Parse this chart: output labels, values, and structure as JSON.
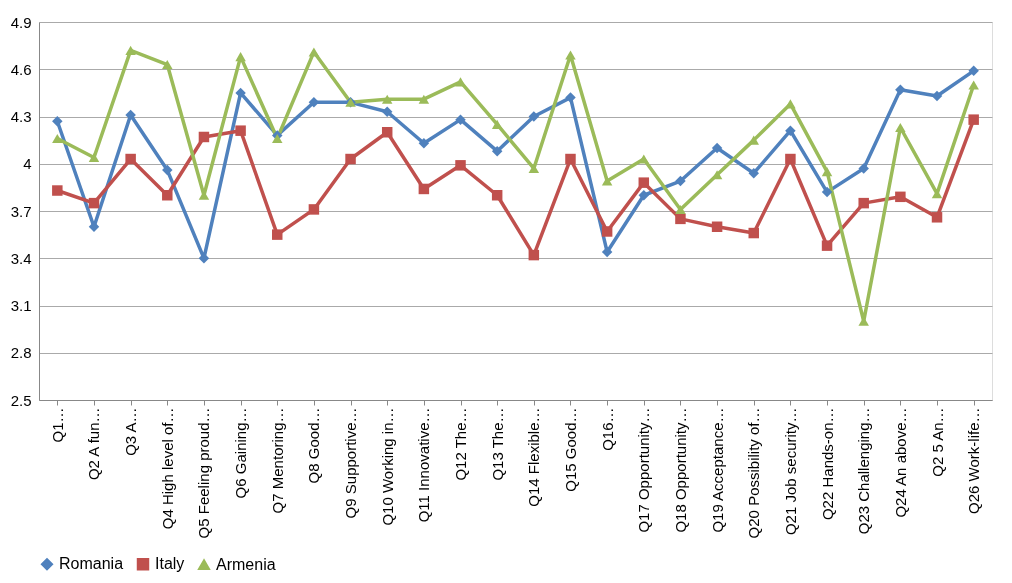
{
  "chart_data": {
    "type": "line",
    "categories": [
      "Q1…",
      "Q2 A fun…",
      "Q3 A…",
      "Q4 High level of…",
      "Q5 Feeling proud…",
      "Q6 Gaining…",
      "Q7 Mentoring…",
      "Q8 Good…",
      "Q9 Supportive…",
      "Q10 Working in…",
      "Q11 Innovative…",
      "Q12 The…",
      "Q13 The…",
      "Q14 Flexible…",
      "Q15 Good…",
      "Q16…",
      "Q17 Opportunity…",
      "Q18 Opportunity…",
      "Q19 Acceptance…",
      "Q20 Possibility of…",
      "Q21 Job security…",
      "Q22 Hands-on…",
      "Q23 Challenging…",
      "Q24 An above…",
      "Q2 5 An…",
      "Q26 Work-life…"
    ],
    "series": [
      {
        "name": "Romania",
        "color": "#4f81bd",
        "marker": "diamond",
        "values": [
          4.27,
          3.6,
          4.31,
          3.96,
          3.4,
          4.45,
          4.18,
          4.39,
          4.39,
          4.33,
          4.13,
          4.28,
          4.08,
          4.3,
          4.42,
          3.44,
          3.8,
          3.89,
          4.1,
          3.94,
          4.21,
          3.82,
          3.97,
          4.47,
          4.43,
          4.59
        ]
      },
      {
        "name": "Italy",
        "color": "#c0504d",
        "marker": "square",
        "values": [
          3.83,
          3.75,
          4.03,
          3.8,
          4.17,
          4.21,
          3.55,
          3.71,
          4.03,
          4.2,
          3.84,
          3.99,
          3.8,
          3.42,
          4.03,
          3.57,
          3.88,
          3.65,
          3.6,
          3.56,
          4.03,
          3.48,
          3.75,
          3.79,
          3.66,
          4.28
        ]
      },
      {
        "name": "Armenia",
        "color": "#9bbb59",
        "marker": "triangle",
        "values": [
          4.16,
          4.04,
          4.72,
          4.63,
          3.8,
          4.68,
          4.16,
          4.71,
          4.39,
          4.41,
          4.41,
          4.52,
          4.25,
          3.97,
          4.69,
          3.89,
          4.03,
          3.71,
          3.93,
          4.15,
          4.38,
          3.95,
          3.0,
          4.23,
          3.81,
          4.5
        ]
      }
    ],
    "ylim": [
      2.5,
      4.9
    ],
    "yticks": [
      2.5,
      2.8,
      3.1,
      3.4,
      3.7,
      4,
      4.3,
      4.6,
      4.9
    ],
    "grid": "y",
    "legend": "bottom",
    "line_style": "solid"
  }
}
